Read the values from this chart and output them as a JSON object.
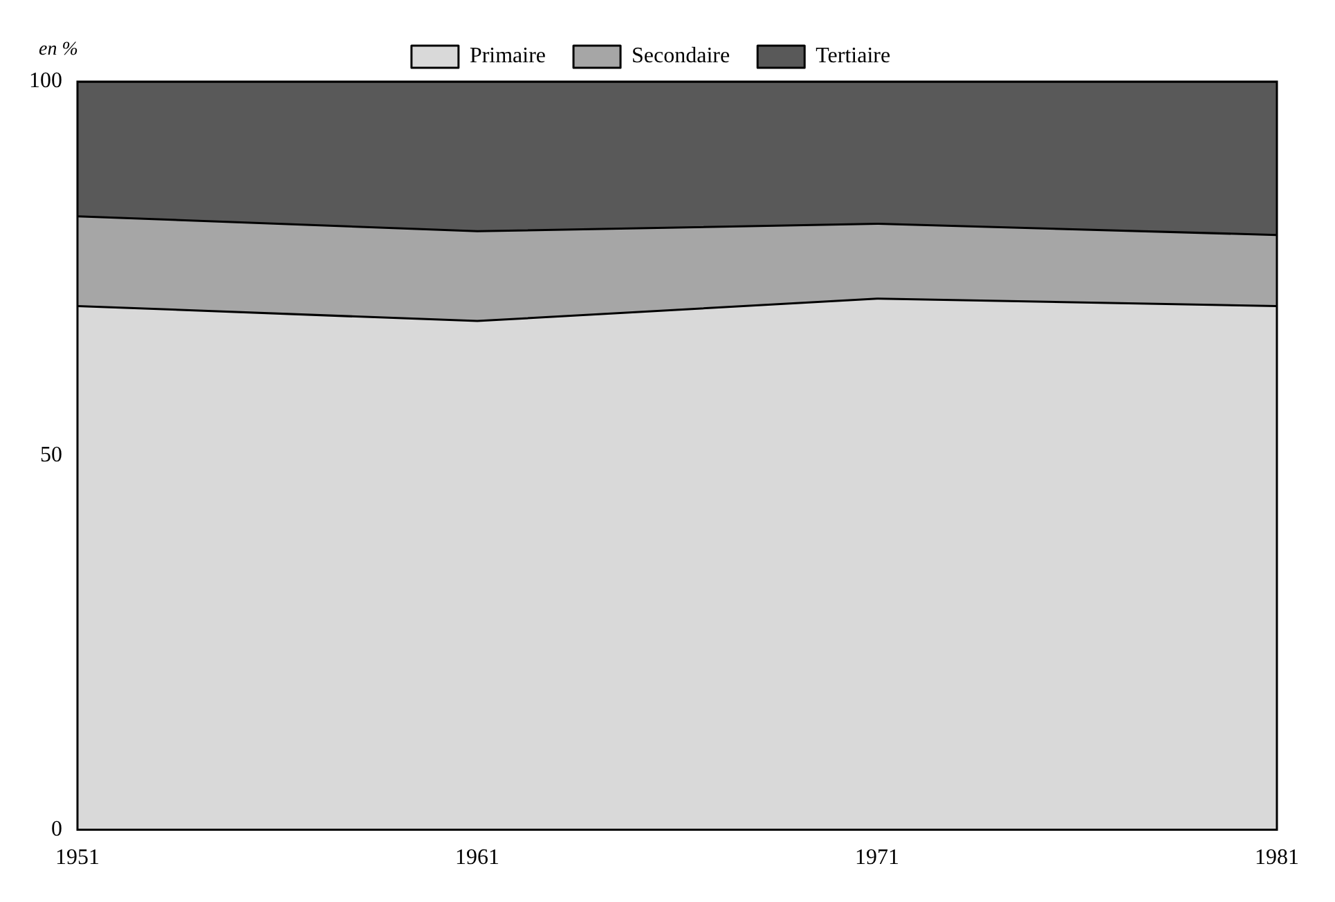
{
  "chart_data": {
    "type": "area",
    "stacked": true,
    "ylabel": "en %",
    "x": [
      1951,
      1961,
      1971,
      1981
    ],
    "series": [
      {
        "name": "Primaire",
        "color": "#d9d9d9",
        "values": [
          70,
          68,
          71,
          70
        ]
      },
      {
        "name": "Secondaire",
        "color": "#a6a6a6",
        "values": [
          12,
          12,
          10,
          9.5
        ]
      },
      {
        "name": "Tertiaire",
        "color": "#595959",
        "values": [
          18,
          20,
          19,
          20.5
        ]
      }
    ],
    "xlim": [
      1951,
      1981
    ],
    "xticks": [
      1951,
      1961,
      1971,
      1981
    ],
    "ylim": [
      0,
      100
    ],
    "yticks": [
      0,
      50,
      100
    ],
    "grid": false,
    "legend": "top"
  }
}
